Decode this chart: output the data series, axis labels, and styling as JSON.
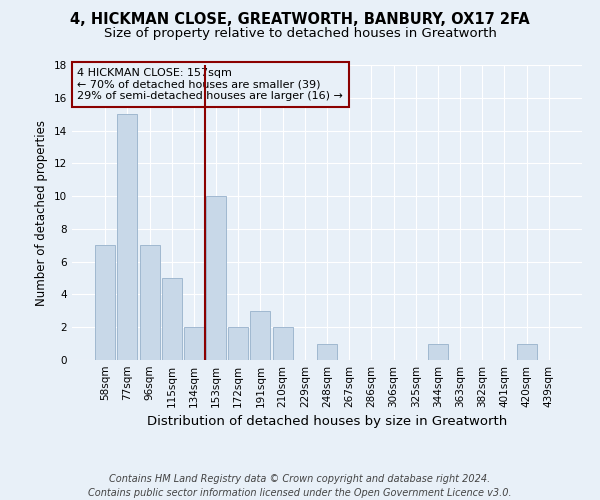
{
  "title": "4, HICKMAN CLOSE, GREATWORTH, BANBURY, OX17 2FA",
  "subtitle": "Size of property relative to detached houses in Greatworth",
  "xlabel": "Distribution of detached houses by size in Greatworth",
  "ylabel": "Number of detached properties",
  "categories": [
    "58sqm",
    "77sqm",
    "96sqm",
    "115sqm",
    "134sqm",
    "153sqm",
    "172sqm",
    "191sqm",
    "210sqm",
    "229sqm",
    "248sqm",
    "267sqm",
    "286sqm",
    "306sqm",
    "325sqm",
    "344sqm",
    "363sqm",
    "382sqm",
    "401sqm",
    "420sqm",
    "439sqm"
  ],
  "values": [
    7,
    15,
    7,
    5,
    2,
    10,
    2,
    3,
    2,
    0,
    1,
    0,
    0,
    0,
    0,
    1,
    0,
    0,
    0,
    1,
    0
  ],
  "bar_color": "#c8d8e8",
  "bar_edge_color": "#a0b8d0",
  "highlight_line_color": "#8b0000",
  "highlight_line_bin": 5,
  "annotation_text": "4 HICKMAN CLOSE: 157sqm\n← 70% of detached houses are smaller (39)\n29% of semi-detached houses are larger (16) →",
  "annotation_box_color": "#8b0000",
  "annotation_text_color": "#000000",
  "ylim": [
    0,
    18
  ],
  "yticks": [
    0,
    2,
    4,
    6,
    8,
    10,
    12,
    14,
    16,
    18
  ],
  "footer": "Contains HM Land Registry data © Crown copyright and database right 2024.\nContains public sector information licensed under the Open Government Licence v3.0.",
  "bg_color": "#e8f0f8",
  "grid_color": "#ffffff",
  "title_fontsize": 10.5,
  "subtitle_fontsize": 9.5,
  "xlabel_fontsize": 9.5,
  "ylabel_fontsize": 8.5,
  "tick_fontsize": 7.5,
  "footer_fontsize": 7,
  "annotation_fontsize": 8
}
